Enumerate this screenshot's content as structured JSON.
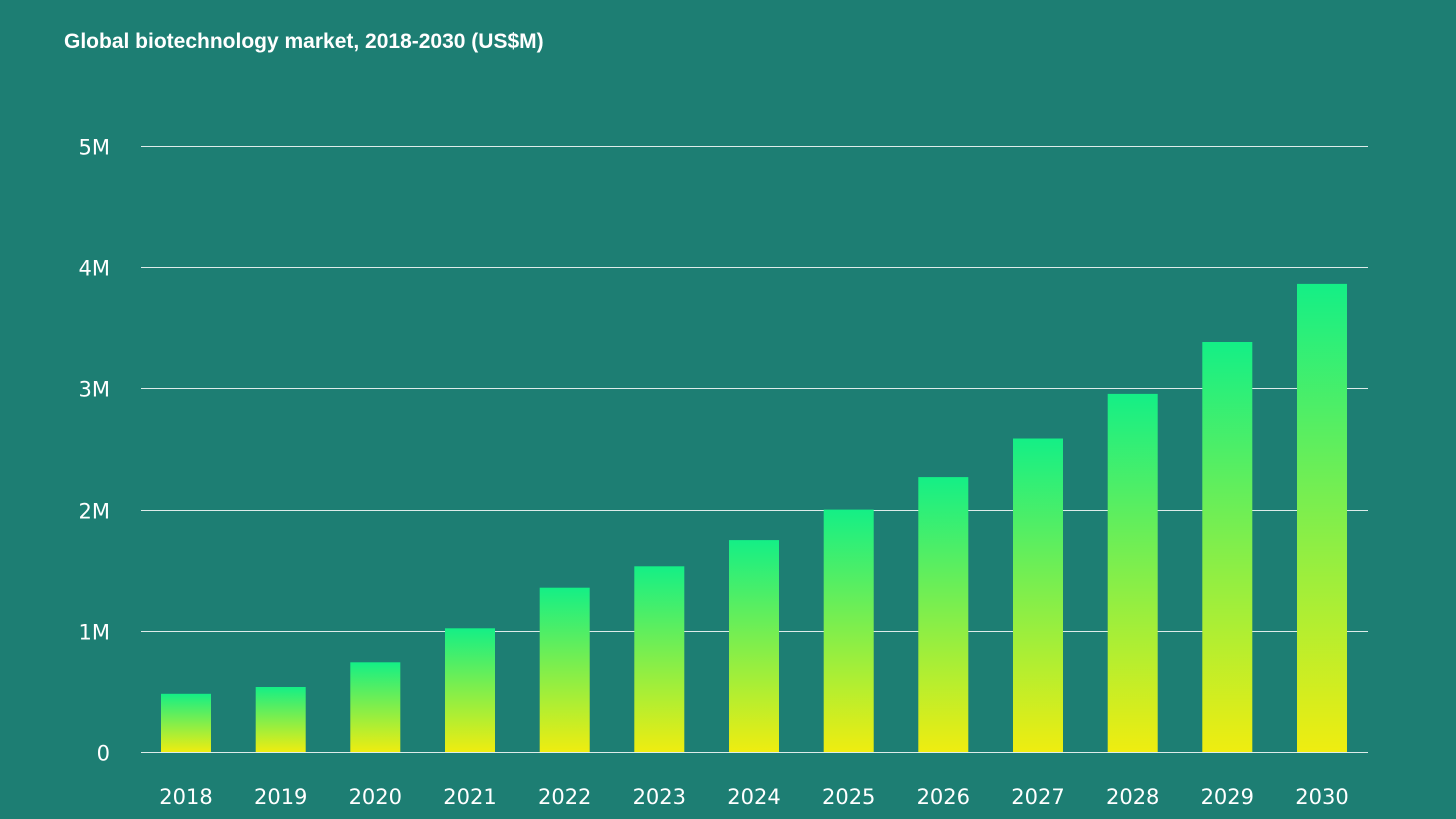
{
  "chart_data": {
    "type": "bar",
    "title": "Global biotechnology market, 2018-2030 (US$M)",
    "xlabel": "",
    "ylabel": "",
    "categories": [
      "2018",
      "2019",
      "2020",
      "2021",
      "2022",
      "2023",
      "2024",
      "2025",
      "2026",
      "2027",
      "2028",
      "2029",
      "2030"
    ],
    "values": [
      480000,
      536000,
      740000,
      1021000,
      1356000,
      1532000,
      1748000,
      2000000,
      2268000,
      2587000,
      2955000,
      3383000,
      3862000
    ],
    "ylim": [
      0,
      5000000
    ],
    "yticks": [
      {
        "value": 0,
        "label": "0"
      },
      {
        "value": 1000000,
        "label": "1M"
      },
      {
        "value": 2000000,
        "label": "2M"
      },
      {
        "value": 3000000,
        "label": "3M"
      },
      {
        "value": 4000000,
        "label": "4M"
      },
      {
        "value": 5000000,
        "label": "5M"
      }
    ],
    "grid": true,
    "legend": "none",
    "colors": {
      "background": "#1d7e73",
      "bar_top": "#14ef86",
      "bar_bottom": "#efed10",
      "text": "#ffffff",
      "grid": "#ffffff"
    }
  }
}
